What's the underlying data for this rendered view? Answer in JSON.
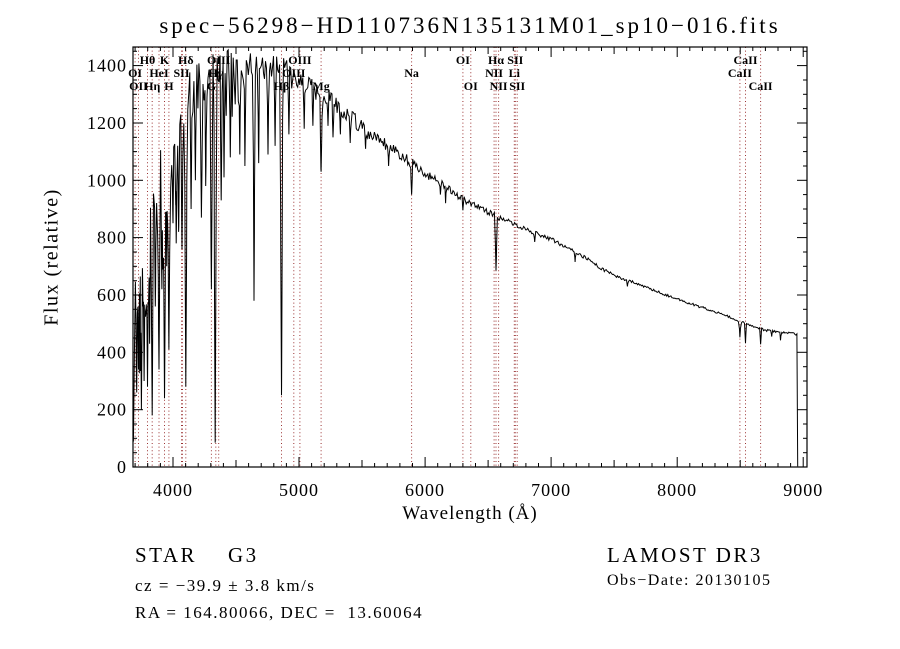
{
  "chart_data": {
    "type": "line",
    "title": "spec−56298−HD110736N135131M01_sp10−016.fits",
    "xlabel": "Wavelength (Å)",
    "ylabel": "Flux (relative)",
    "xlim": [
      3683,
      9030
    ],
    "ylim": [
      0,
      1465
    ],
    "xticks": [
      4000,
      5000,
      6000,
      7000,
      8000,
      9000
    ],
    "yticks": [
      0,
      200,
      400,
      600,
      800,
      1000,
      1200,
      1400
    ],
    "x_minor_step": 100,
    "x_medium_step": 500,
    "y_minor_step": 50,
    "grid": false,
    "line_color": "#000000",
    "marker_line_color": "#9b3232",
    "spectral_lines": [
      {
        "wavelength": 3700,
        "label": "OI",
        "row": 2
      },
      {
        "wavelength": 3727,
        "label": "OII",
        "row": 3
      },
      {
        "wavelength": 3798,
        "label": "Hθ",
        "row": 1
      },
      {
        "wavelength": 3835,
        "label": "Hη",
        "row": 3
      },
      {
        "wavelength": 3889,
        "label": "HeI",
        "row": 2
      },
      {
        "wavelength": 3933,
        "label": "K",
        "row": 1
      },
      {
        "wavelength": 3968,
        "label": "H",
        "row": 3
      },
      {
        "wavelength": 4068,
        "label": "SII",
        "row": 2
      },
      {
        "wavelength": 4076,
        "label": "",
        "row": 2
      },
      {
        "wavelength": 4102,
        "label": "Hδ",
        "row": 1
      },
      {
        "wavelength": 4305,
        "label": "G",
        "row": 3
      },
      {
        "wavelength": 4340,
        "label": "Hγ",
        "row": 2
      },
      {
        "wavelength": 4363,
        "label": "OIII",
        "row": 1
      },
      {
        "wavelength": 4861,
        "label": "Hβ",
        "row": 3
      },
      {
        "wavelength": 4959,
        "label": "OIII",
        "row": 2
      },
      {
        "wavelength": 5007,
        "label": "OIII",
        "row": 1
      },
      {
        "wavelength": 5175,
        "label": "Mg",
        "row": 3
      },
      {
        "wavelength": 5893,
        "label": "Na",
        "row": 2
      },
      {
        "wavelength": 6300,
        "label": "OI",
        "row": 1
      },
      {
        "wavelength": 6363,
        "label": "OI",
        "row": 3
      },
      {
        "wavelength": 6548,
        "label": "NII",
        "row": 2
      },
      {
        "wavelength": 6563,
        "label": "Hα",
        "row": 1
      },
      {
        "wavelength": 6583,
        "label": "NII",
        "row": 3
      },
      {
        "wavelength": 6708,
        "label": "Li",
        "row": 2
      },
      {
        "wavelength": 6716,
        "label": "SII",
        "row": 1
      },
      {
        "wavelength": 6731,
        "label": "SII",
        "row": 3
      },
      {
        "wavelength": 8498,
        "label": "CaII",
        "row": 2
      },
      {
        "wavelength": 8542,
        "label": "CaII",
        "row": 1
      },
      {
        "wavelength": 8662,
        "label": "CaII",
        "row": 3
      }
    ],
    "spectrum": {
      "seed": 20130105,
      "start": 3686,
      "end": 8952,
      "step": 8,
      "continuum": [
        [
          3686,
          60
        ],
        [
          3694,
          520
        ],
        [
          3700,
          800
        ],
        [
          3720,
          810
        ],
        [
          3740,
          830
        ],
        [
          3760,
          850
        ],
        [
          3780,
          880
        ],
        [
          3800,
          910
        ],
        [
          3850,
          990
        ],
        [
          3900,
          1040
        ],
        [
          3950,
          1110
        ],
        [
          4000,
          1180
        ],
        [
          4050,
          1230
        ],
        [
          4100,
          1270
        ],
        [
          4150,
          1300
        ],
        [
          4200,
          1330
        ],
        [
          4250,
          1350
        ],
        [
          4300,
          1365
        ],
        [
          4350,
          1380
        ],
        [
          4400,
          1390
        ],
        [
          4500,
          1400
        ],
        [
          4600,
          1405
        ],
        [
          4700,
          1405
        ],
        [
          4800,
          1395
        ],
        [
          4900,
          1375
        ],
        [
          5000,
          1345
        ],
        [
          5100,
          1325
        ],
        [
          5200,
          1300
        ],
        [
          5300,
          1265
        ],
        [
          5400,
          1225
        ],
        [
          5500,
          1185
        ],
        [
          5600,
          1150
        ],
        [
          5700,
          1120
        ],
        [
          5800,
          1090
        ],
        [
          5900,
          1060
        ],
        [
          6000,
          1025
        ],
        [
          6100,
          995
        ],
        [
          6200,
          965
        ],
        [
          6300,
          935
        ],
        [
          6400,
          910
        ],
        [
          6500,
          890
        ],
        [
          6600,
          868
        ],
        [
          6700,
          848
        ],
        [
          6800,
          828
        ],
        [
          6900,
          812
        ],
        [
          7000,
          795
        ],
        [
          7100,
          772
        ],
        [
          7200,
          748
        ],
        [
          7300,
          722
        ],
        [
          7400,
          692
        ],
        [
          7500,
          668
        ],
        [
          7600,
          652
        ],
        [
          7700,
          636
        ],
        [
          7800,
          619
        ],
        [
          7900,
          602
        ],
        [
          8000,
          587
        ],
        [
          8100,
          571
        ],
        [
          8200,
          556
        ],
        [
          8300,
          541
        ],
        [
          8400,
          526
        ],
        [
          8500,
          508
        ],
        [
          8600,
          490
        ],
        [
          8700,
          477
        ],
        [
          8800,
          471
        ],
        [
          8900,
          467
        ],
        [
          8952,
          462
        ]
      ],
      "noise_amplitude": [
        [
          3686,
          200
        ],
        [
          3800,
          170
        ],
        [
          3900,
          150
        ],
        [
          4000,
          110
        ],
        [
          4150,
          85
        ],
        [
          4300,
          75
        ],
        [
          4500,
          60
        ],
        [
          4800,
          52
        ],
        [
          5000,
          40
        ],
        [
          5300,
          30
        ],
        [
          5600,
          22
        ],
        [
          6000,
          15
        ],
        [
          6500,
          10
        ],
        [
          7000,
          7
        ],
        [
          7600,
          5
        ],
        [
          8400,
          4
        ],
        [
          8952,
          4
        ]
      ],
      "absorption_dips": [
        [
          3712,
          260,
          9
        ],
        [
          3727,
          340,
          9
        ],
        [
          3737,
          520,
          7
        ],
        [
          3750,
          200,
          8
        ],
        [
          3762,
          560,
          7
        ],
        [
          3771,
          300,
          8
        ],
        [
          3798,
          280,
          9
        ],
        [
          3815,
          430,
          7
        ],
        [
          3835,
          180,
          9
        ],
        [
          3860,
          560,
          7
        ],
        [
          3889,
          340,
          9
        ],
        [
          3912,
          620,
          7
        ],
        [
          3933,
          240,
          10
        ],
        [
          3950,
          700,
          6
        ],
        [
          3968,
          410,
          10
        ],
        [
          4000,
          850,
          7
        ],
        [
          4026,
          780,
          7
        ],
        [
          4045,
          820,
          7
        ],
        [
          4072,
          760,
          8
        ],
        [
          4102,
          280,
          10
        ],
        [
          4144,
          900,
          7
        ],
        [
          4178,
          1000,
          6
        ],
        [
          4226,
          870,
          8
        ],
        [
          4260,
          980,
          6
        ],
        [
          4305,
          620,
          9
        ],
        [
          4335,
          85,
          10
        ],
        [
          4383,
          930,
          8
        ],
        [
          4405,
          1010,
          6
        ],
        [
          4455,
          1080,
          6
        ],
        [
          4530,
          1090,
          6
        ],
        [
          4571,
          1050,
          6
        ],
        [
          4643,
          580,
          7
        ],
        [
          4680,
          1060,
          6
        ],
        [
          4754,
          1090,
          6
        ],
        [
          4810,
          1120,
          6
        ],
        [
          4861,
          250,
          10
        ],
        [
          4920,
          1160,
          6
        ],
        [
          5041,
          1180,
          5
        ],
        [
          5110,
          1190,
          6
        ],
        [
          5175,
          1030,
          9
        ],
        [
          5230,
          1190,
          5
        ],
        [
          5270,
          1150,
          7
        ],
        [
          5328,
          1160,
          5
        ],
        [
          5406,
          1130,
          5
        ],
        [
          5528,
          1110,
          5
        ],
        [
          5711,
          1050,
          5
        ],
        [
          5893,
          950,
          8
        ],
        [
          6122,
          950,
          5
        ],
        [
          6163,
          920,
          4
        ],
        [
          6300,
          895,
          5
        ],
        [
          6563,
          685,
          8
        ],
        [
          6870,
          785,
          5
        ],
        [
          7190,
          715,
          4
        ],
        [
          7605,
          630,
          5
        ],
        [
          8498,
          452,
          6
        ],
        [
          8542,
          432,
          6
        ],
        [
          8662,
          428,
          6
        ],
        [
          8750,
          455,
          4
        ],
        [
          8820,
          442,
          4
        ]
      ]
    }
  },
  "annotations": {
    "class_label": "STAR    G3",
    "cz": "cz = −39.9 ± 3.8 km/s",
    "radec": "RA = 164.80066, DEC =  13.60064",
    "survey": "LAMOST DR3",
    "obs_date": "Obs−Date: 20130105"
  }
}
